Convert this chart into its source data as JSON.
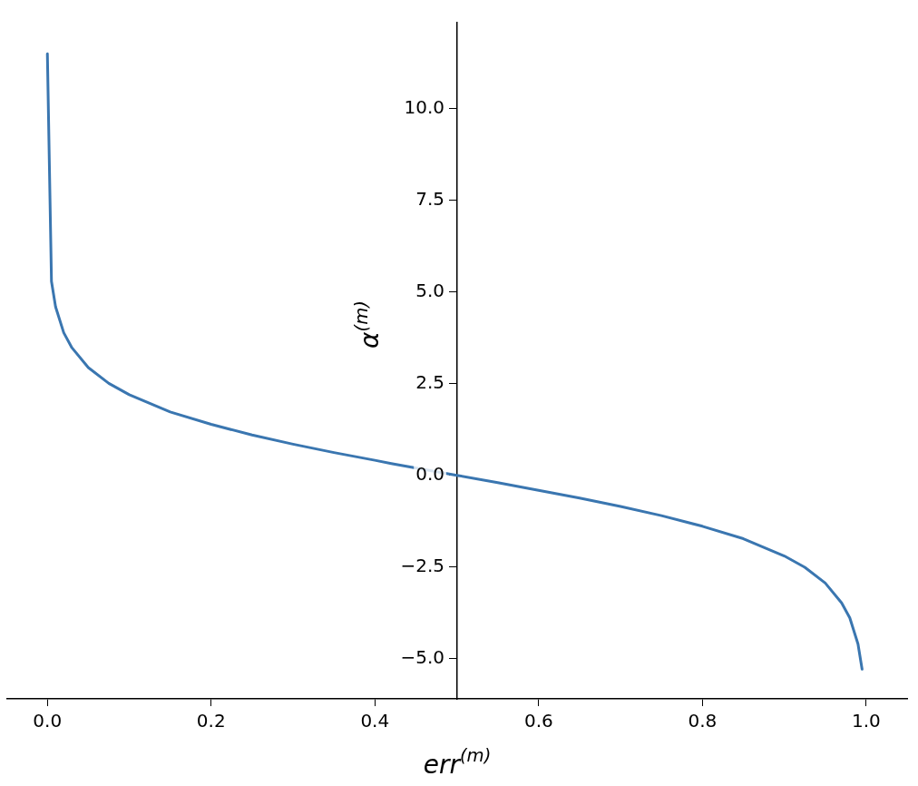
{
  "chart_data": {
    "type": "line",
    "xlabel": "err$^{(m)}$",
    "ylabel": "α$^{(m)}$",
    "x": [
      1e-05,
      0.005,
      0.01,
      0.02,
      0.03,
      0.05,
      0.075,
      0.1,
      0.15,
      0.2,
      0.25,
      0.3,
      0.35,
      0.4,
      0.42,
      0.5,
      0.55,
      0.6,
      0.65,
      0.7,
      0.75,
      0.8,
      0.85,
      0.9,
      0.925,
      0.95,
      0.97,
      0.98,
      0.99,
      0.995
    ],
    "series": [
      {
        "color": "#3a76b0",
        "values": [
          11.5,
          5.29,
          4.6,
          3.89,
          3.48,
          2.94,
          2.51,
          2.2,
          1.73,
          1.39,
          1.1,
          0.85,
          0.62,
          0.41,
          0.32,
          0,
          -0.2,
          -0.41,
          -0.62,
          -0.85,
          -1.1,
          -1.39,
          -1.73,
          -2.2,
          -2.51,
          -2.94,
          -3.48,
          -3.89,
          -4.6,
          -5.29
        ]
      }
    ],
    "xlim": [
      -0.049,
      1.05
    ],
    "ylim": [
      -6.1,
      12.35
    ],
    "xticks": [
      {
        "value": 0,
        "label": "0.0"
      },
      {
        "value": 0.2,
        "label": "0.2"
      },
      {
        "value": 0.4,
        "label": "0.4"
      },
      {
        "value": 0.6,
        "label": "0.6"
      },
      {
        "value": 0.8,
        "label": "0.8"
      },
      {
        "value": 1,
        "label": "1.0"
      }
    ],
    "yticks": [
      {
        "value": -5,
        "label": "−5.0"
      },
      {
        "value": -2.5,
        "label": "−2.5"
      },
      {
        "value": 0,
        "label": "0.0"
      },
      {
        "value": 2.5,
        "label": "2.5"
      },
      {
        "value": 5,
        "label": "5.0"
      },
      {
        "value": 7.5,
        "label": "7.5"
      },
      {
        "value": 10,
        "label": "10.0"
      }
    ],
    "grid": false,
    "legend": false,
    "marker": "none",
    "line_style": "solid"
  }
}
